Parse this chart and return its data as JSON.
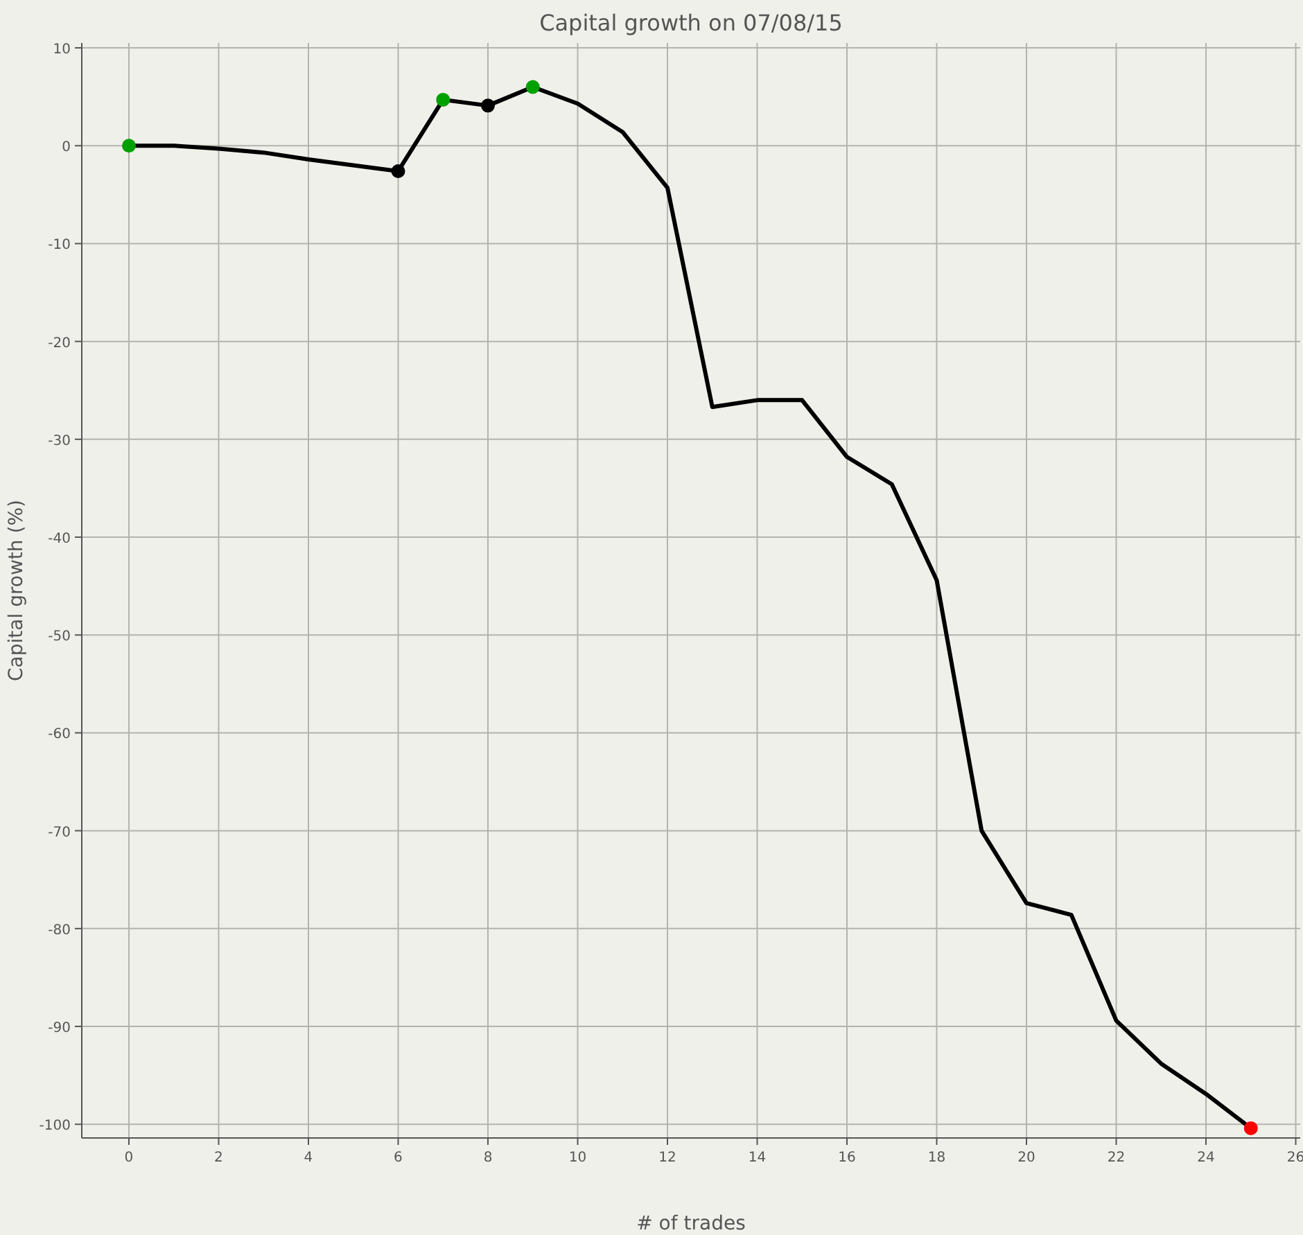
{
  "chart_data": {
    "type": "line",
    "title": "Capital growth on 07/08/15",
    "xlabel": "# of trades",
    "ylabel": "Capital growth (%)",
    "x": [
      0,
      1,
      2,
      3,
      4,
      5,
      6,
      7,
      8,
      9,
      10,
      11,
      12,
      13,
      14,
      15,
      16,
      17,
      18,
      19,
      20,
      21,
      22,
      23,
      24,
      25
    ],
    "series": [
      {
        "color": "#000000",
        "marker": "none",
        "values": [
          0,
          0,
          -0.3,
          -0.7,
          -1.4,
          -2,
          -2.6,
          4.7,
          4.1,
          6,
          4.3,
          1.4,
          -4.3,
          -26.7,
          -26,
          -26,
          -31.8,
          -34.6,
          -44.4,
          -70,
          -77.4,
          -78.6,
          -89.4,
          -93.8,
          -96.9,
          -100.4
        ]
      },
      {
        "type": "scatter",
        "color": "#00a000",
        "marker": "circle",
        "x": [
          0,
          7,
          9
        ],
        "values": [
          0,
          4.7,
          6
        ]
      },
      {
        "type": "scatter",
        "color": "#000000",
        "marker": "circle",
        "x": [
          6,
          8
        ],
        "values": [
          -2.6,
          4.1
        ]
      },
      {
        "type": "scatter",
        "color": "#ff0000",
        "marker": "circle",
        "x": [
          25
        ],
        "values": [
          -100.4
        ]
      }
    ],
    "xlim": [
      -1.05,
      26.1
    ],
    "ylim": [
      -101.4,
      10.5
    ],
    "xticks": [
      0,
      2,
      4,
      6,
      8,
      10,
      12,
      14,
      16,
      18,
      20,
      22,
      24,
      26
    ],
    "yticks": [
      10,
      0,
      -10,
      -20,
      -30,
      -40,
      -50,
      -60,
      -70,
      -80,
      -90,
      -100
    ],
    "grid": true
  }
}
